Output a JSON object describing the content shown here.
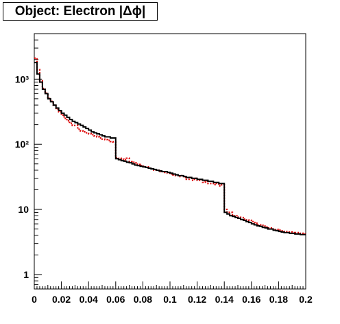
{
  "chart_data": {
    "type": "line",
    "title": "Object: Electron |Δϕ|",
    "xlabel": "",
    "ylabel": "",
    "xlim": [
      0,
      0.2
    ],
    "ylim": [
      0.6,
      5000
    ],
    "y_scale": "log",
    "grid": false,
    "legend": "none",
    "x_tick_labels": [
      "0",
      "0.02",
      "0.04",
      "0.06",
      "0.08",
      "0.1",
      "0.12",
      "0.14",
      "0.16",
      "0.18",
      "0.2"
    ],
    "x_ticks": [
      0,
      0.02,
      0.04,
      0.06,
      0.08,
      0.1,
      0.12,
      0.14,
      0.16,
      0.18,
      0.2
    ],
    "y_tick_labels": [
      "1",
      "10",
      "10²",
      "10³"
    ],
    "y_ticks": [
      1,
      10,
      100,
      1000
    ],
    "bin_edges_start": 0,
    "bin_width": 0.002,
    "series": [
      {
        "color": "#000000",
        "style": "solid",
        "values": [
          1800,
          1200,
          900,
          700,
          600,
          500,
          450,
          400,
          360,
          330,
          300,
          280,
          260,
          240,
          225,
          215,
          205,
          195,
          185,
          175,
          165,
          155,
          150,
          145,
          140,
          135,
          130,
          130,
          125,
          125,
          60,
          58,
          56,
          55,
          53,
          52,
          50,
          48,
          47,
          46,
          45,
          44,
          43,
          42,
          41,
          40,
          39,
          38,
          38,
          37,
          36,
          35,
          34,
          33,
          33,
          32,
          31,
          31,
          30,
          30,
          29,
          29,
          28,
          28,
          27,
          27,
          26,
          26,
          25,
          25,
          9,
          8.5,
          8,
          7.8,
          7.5,
          7.3,
          7,
          6.8,
          6.5,
          6.3,
          6,
          5.8,
          5.6,
          5.5,
          5.3,
          5.2,
          5,
          5,
          4.8,
          4.7,
          4.6,
          4.5,
          4.4,
          4.4,
          4.3,
          4.3,
          4.2,
          4.2,
          4.1,
          4.1
        ]
      },
      {
        "color": "#dd0000",
        "style": "dotted",
        "values": [
          2100,
          1400,
          950,
          720,
          610,
          505,
          455,
          400,
          345,
          315,
          280,
          250,
          230,
          210,
          195,
          195,
          170,
          160,
          155,
          150,
          145,
          140,
          135,
          130,
          125,
          120,
          118,
          115,
          110,
          108,
          62,
          61,
          59,
          58,
          61,
          54,
          53,
          52,
          49,
          47,
          46,
          45,
          43,
          42,
          40,
          40,
          38,
          38,
          37,
          36,
          35,
          34,
          33,
          32,
          33,
          31,
          29,
          31,
          28,
          30,
          28,
          28,
          26,
          27,
          25,
          25,
          24,
          25,
          23,
          24,
          10,
          9,
          9,
          8,
          8,
          7.6,
          7.5,
          7.1,
          6.9,
          6.8,
          6.5,
          6.3,
          5.8,
          5.8,
          5.7,
          5.4,
          5.2,
          5.2,
          4.9,
          4.9,
          4.8,
          4.7,
          4.6,
          4.5,
          4.5,
          4.3,
          4.4,
          4.4,
          4.3,
          4.2
        ]
      }
    ]
  }
}
